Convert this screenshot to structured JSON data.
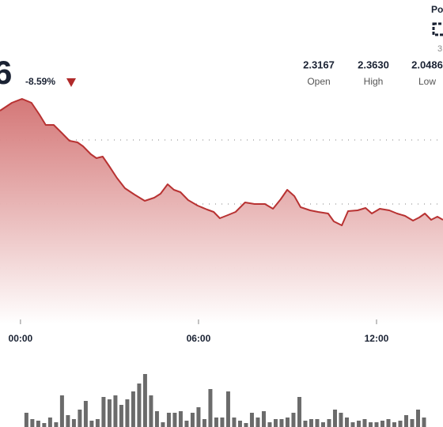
{
  "chart_data": {
    "type": "area",
    "price": "6",
    "change": "-8.59%",
    "stats": [
      {
        "value": "2.3167",
        "label": "Open"
      },
      {
        "value": "2.3630",
        "label": "High"
      },
      {
        "value": "2.0486",
        "label": "Low"
      }
    ],
    "corner_title": "Po",
    "corner_note": "3",
    "color": "#b83232",
    "x": [
      -0.69,
      -0.29,
      0.05,
      0.37,
      0.64,
      0.85,
      1.12,
      1.39,
      1.65,
      1.92,
      2.11,
      2.37,
      2.56,
      2.77,
      2.99,
      3.25,
      3.52,
      3.84,
      4.19,
      4.51,
      4.72,
      4.96,
      5.17,
      5.39,
      5.65,
      5.97,
      6.29,
      6.51,
      6.72,
      6.99,
      7.25,
      7.57,
      7.89,
      8.24,
      8.51,
      8.77,
      8.99,
      9.23,
      9.44,
      9.76,
      10.03,
      10.37,
      10.56,
      10.83,
      11.04,
      11.36,
      11.63,
      11.84,
      12.11,
      12.43,
      12.69,
      12.96,
      13.23,
      13.44,
      13.63,
      13.84,
      14.05,
      14.24
    ],
    "values": [
      2.34,
      2.36,
      2.37,
      2.36,
      2.33,
      2.304,
      2.304,
      2.284,
      2.264,
      2.26,
      2.25,
      2.23,
      2.22,
      2.224,
      2.2,
      2.17,
      2.144,
      2.128,
      2.112,
      2.12,
      2.13,
      2.154,
      2.14,
      2.134,
      2.114,
      2.1,
      2.09,
      2.084,
      2.068,
      2.076,
      2.084,
      2.108,
      2.104,
      2.104,
      2.092,
      2.116,
      2.14,
      2.124,
      2.096,
      2.088,
      2.084,
      2.08,
      2.06,
      2.05,
      2.086,
      2.088,
      2.094,
      2.08,
      2.092,
      2.088,
      2.08,
      2.074,
      2.062,
      2.07,
      2.08,
      2.064,
      2.072,
      2.064
    ],
    "xlim": [
      -0.69,
      14.24
    ],
    "ylim": [
      1.8,
      2.5
    ],
    "xticks": [
      {
        "value": 0,
        "label": "00:00"
      },
      {
        "value": 6,
        "label": "06:00"
      },
      {
        "value": 12,
        "label": "12:00"
      }
    ],
    "yticks": [
      2.266,
      2.104,
      1.942
    ],
    "grid": true,
    "volume": {
      "color": "#6b6b6b",
      "ylim": [
        0,
        100
      ],
      "x": [
        0.2,
        0.4,
        0.6,
        0.8,
        1.0,
        1.2,
        1.4,
        1.6,
        1.8,
        2.0,
        2.2,
        2.4,
        2.6,
        2.8,
        3.0,
        3.2,
        3.4,
        3.6,
        3.8,
        4.0,
        4.2,
        4.4,
        4.6,
        4.8,
        5.0,
        5.2,
        5.4,
        5.6,
        5.8,
        6.0,
        6.2,
        6.4,
        6.6,
        6.8,
        7.0,
        7.2,
        7.4,
        7.6,
        7.8,
        8.0,
        8.2,
        8.4,
        8.6,
        8.8,
        9.0,
        9.2,
        9.4,
        9.6,
        9.8,
        10.0,
        10.2,
        10.4,
        10.6,
        10.8,
        11.0,
        11.2,
        11.4,
        11.6,
        11.8,
        12.0,
        12.2,
        12.4,
        12.6,
        12.8,
        13.0,
        13.2,
        13.4,
        13.6
      ],
      "values": [
        18,
        10,
        8,
        5,
        12,
        6,
        40,
        15,
        10,
        22,
        33,
        8,
        10,
        38,
        35,
        40,
        28,
        35,
        45,
        55,
        67,
        40,
        20,
        6,
        18,
        18,
        20,
        8,
        18,
        25,
        10,
        48,
        12,
        12,
        45,
        12,
        8,
        5,
        18,
        12,
        20,
        6,
        10,
        10,
        12,
        18,
        38,
        8,
        10,
        10,
        6,
        10,
        22,
        18,
        12,
        6,
        8,
        10,
        6,
        6,
        8,
        10,
        6,
        8,
        15,
        10,
        22,
        12
      ]
    }
  }
}
